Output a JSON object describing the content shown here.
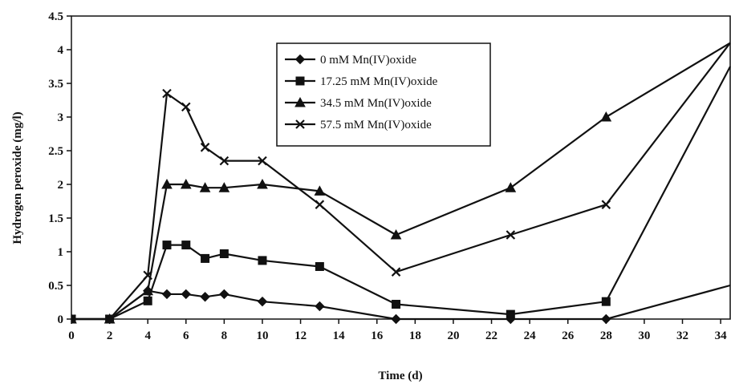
{
  "chart_data": {
    "type": "line",
    "xlabel": "Time (d)",
    "ylabel": "Hydrogen peroxide (mg/l)",
    "xlim": [
      0,
      34.5
    ],
    "ylim": [
      0,
      4.5
    ],
    "xticks": [
      "0",
      "2",
      "4",
      "6",
      "8",
      "10",
      "12",
      "14",
      "16",
      "18",
      "20",
      "22",
      "24",
      "26",
      "28",
      "30",
      "32",
      "34"
    ],
    "yticks": [
      "0",
      "0.5",
      "1",
      "1.5",
      "2",
      "2.5",
      "3",
      "3.5",
      "4",
      "4.5"
    ],
    "grid": false,
    "legend_position": "top-center",
    "series": [
      {
        "name": "0 mM Mn(IV)oxide",
        "marker": "diamond",
        "color": "#111111",
        "points": [
          [
            0,
            0
          ],
          [
            2,
            0
          ],
          [
            4,
            0.42
          ],
          [
            5,
            0.37
          ],
          [
            6,
            0.37
          ],
          [
            7,
            0.33
          ],
          [
            8,
            0.37
          ],
          [
            10,
            0.26
          ],
          [
            13,
            0.19
          ],
          [
            17,
            0
          ],
          [
            23,
            0
          ],
          [
            28,
            0
          ],
          [
            34.5,
            0.5
          ]
        ]
      },
      {
        "name": "17.25 mM Mn(IV)oxide",
        "marker": "square",
        "color": "#111111",
        "points": [
          [
            0,
            0
          ],
          [
            2,
            0
          ],
          [
            4,
            0.27
          ],
          [
            5,
            1.1
          ],
          [
            6,
            1.1
          ],
          [
            7,
            0.9
          ],
          [
            8,
            0.97
          ],
          [
            10,
            0.87
          ],
          [
            13,
            0.78
          ],
          [
            17,
            0.22
          ],
          [
            23,
            0.07
          ],
          [
            28,
            0.26
          ],
          [
            34.5,
            3.75
          ]
        ]
      },
      {
        "name": "34.5 mM Mn(IV)oxide",
        "marker": "triangle",
        "color": "#111111",
        "points": [
          [
            0,
            0
          ],
          [
            2,
            0
          ],
          [
            4,
            0.42
          ],
          [
            5,
            2.0
          ],
          [
            6,
            2.0
          ],
          [
            7,
            1.95
          ],
          [
            8,
            1.95
          ],
          [
            10,
            2.0
          ],
          [
            13,
            1.9
          ],
          [
            17,
            1.25
          ],
          [
            23,
            1.95
          ],
          [
            28,
            3.0
          ],
          [
            34.5,
            4.1
          ]
        ]
      },
      {
        "name": "57.5 mM Mn(IV)oxide",
        "marker": "x",
        "color": "#111111",
        "points": [
          [
            0,
            0
          ],
          [
            2,
            0
          ],
          [
            4,
            0.65
          ],
          [
            5,
            3.35
          ],
          [
            6,
            3.15
          ],
          [
            7,
            2.55
          ],
          [
            8,
            2.35
          ],
          [
            10,
            2.35
          ],
          [
            13,
            1.7
          ],
          [
            17,
            0.7
          ],
          [
            23,
            1.25
          ],
          [
            28,
            1.7
          ],
          [
            34.5,
            4.1
          ]
        ]
      }
    ]
  }
}
